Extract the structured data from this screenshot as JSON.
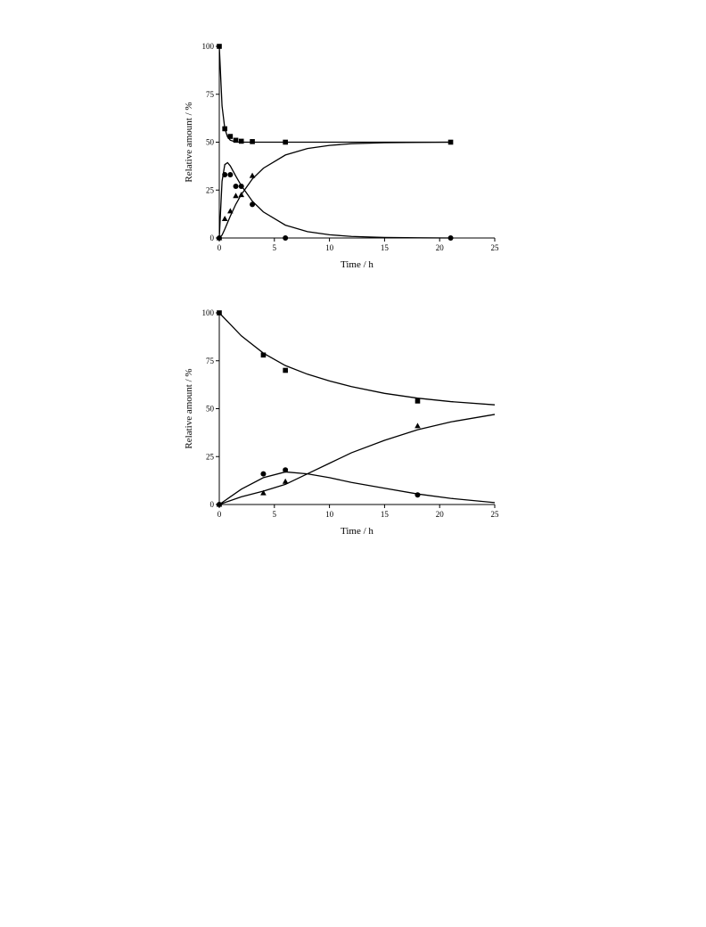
{
  "chart_data": [
    {
      "type": "scatter",
      "x_label": "Time / h",
      "y_label": "Relative amount / %",
      "xlim": [
        0,
        25
      ],
      "ylim": [
        0,
        100
      ],
      "xticks": [
        0,
        5,
        10,
        15,
        20,
        25
      ],
      "yticks": [
        0,
        25,
        50,
        75,
        100
      ],
      "series": [
        {
          "marker": "square",
          "color": "#000000",
          "x": [
            0,
            0.5,
            1,
            1.5,
            2,
            3,
            6,
            21
          ],
          "values": [
            100,
            57,
            53,
            51,
            50.5,
            50.3,
            50,
            50
          ]
        },
        {
          "marker": "circle",
          "color": "#000000",
          "x": [
            0,
            0.5,
            1,
            1.5,
            2,
            3,
            6,
            21
          ],
          "values": [
            0,
            33,
            33,
            27,
            27,
            17.5,
            0,
            0
          ]
        },
        {
          "marker": "triangle",
          "color": "#000000",
          "x": [
            0,
            0.5,
            1,
            1.5,
            2,
            3
          ],
          "values": [
            0,
            10,
            14,
            22,
            22.5,
            32.5
          ]
        }
      ],
      "fits": [
        {
          "color": "#000000",
          "x": [
            0,
            0.25,
            0.5,
            0.75,
            1,
            1.5,
            2,
            3,
            4,
            6,
            8,
            10,
            12,
            15,
            18,
            21
          ],
          "values": [
            100,
            68.9,
            57.1,
            52.7,
            51,
            50.1,
            50,
            50,
            50,
            50,
            50,
            50,
            50,
            50,
            50,
            50
          ]
        },
        {
          "color": "#000000",
          "x": [
            0,
            0.25,
            0.5,
            0.75,
            1,
            1.5,
            2,
            3,
            4,
            6,
            8,
            10,
            12,
            15,
            18,
            21
          ],
          "values": [
            0,
            29.6,
            38.3,
            39.3,
            37.6,
            32.3,
            27.3,
            19.2,
            13.6,
            6.7,
            3.3,
            1.7,
            0.8,
            0.3,
            0.1,
            0
          ]
        },
        {
          "color": "#000000",
          "x": [
            0,
            0.25,
            0.5,
            0.75,
            1,
            1.5,
            2,
            3,
            4,
            6,
            8,
            10,
            12,
            15,
            18,
            21
          ],
          "values": [
            0,
            1.5,
            4.6,
            8,
            11.4,
            17.6,
            22.7,
            30.8,
            36.4,
            43.3,
            46.7,
            48.3,
            49.2,
            49.7,
            49.9,
            50
          ]
        }
      ]
    },
    {
      "type": "scatter",
      "x_label": "Time / h",
      "y_label": "Relative amount / %",
      "xlim": [
        0,
        25
      ],
      "ylim": [
        0,
        100
      ],
      "xticks": [
        0,
        5,
        10,
        15,
        20,
        25
      ],
      "yticks": [
        0,
        25,
        50,
        75,
        100
      ],
      "series": [
        {
          "marker": "square",
          "color": "#000000",
          "x": [
            0,
            4,
            6,
            18
          ],
          "values": [
            100,
            78,
            70,
            54
          ]
        },
        {
          "marker": "circle",
          "color": "#000000",
          "x": [
            0,
            4,
            6,
            18
          ],
          "values": [
            0,
            16,
            18,
            5
          ]
        },
        {
          "marker": "triangle",
          "color": "#000000",
          "x": [
            0,
            4,
            6,
            18
          ],
          "values": [
            0,
            6,
            12,
            41
          ]
        }
      ],
      "fits": [
        {
          "color": "#000000",
          "x": [
            0,
            2,
            4,
            6,
            8,
            10,
            12,
            15,
            18,
            21,
            25
          ],
          "values": [
            100,
            88,
            79,
            72.5,
            68,
            64.5,
            61.5,
            58,
            55.5,
            53.7,
            52
          ]
        },
        {
          "color": "#000000",
          "x": [
            0,
            2,
            4,
            6,
            8,
            10,
            12,
            15,
            18,
            21,
            25
          ],
          "values": [
            0,
            8,
            14,
            17,
            16,
            14,
            11.5,
            8.5,
            5.5,
            3.2,
            1
          ]
        },
        {
          "color": "#000000",
          "x": [
            0,
            2,
            4,
            6,
            8,
            10,
            12,
            15,
            18,
            21,
            25
          ],
          "values": [
            0,
            4,
            7,
            10.5,
            16,
            21.5,
            27,
            33.5,
            39,
            43.1,
            47
          ]
        }
      ]
    }
  ]
}
